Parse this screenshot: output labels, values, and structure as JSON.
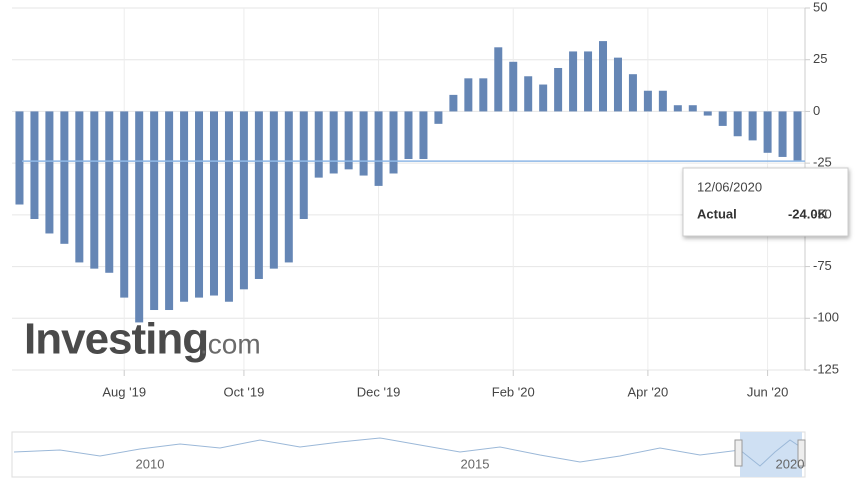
{
  "chart_data": {
    "type": "bar",
    "categories": [
      null,
      null,
      null,
      null,
      null,
      null,
      null,
      "Aug '19",
      null,
      null,
      null,
      null,
      null,
      null,
      null,
      "Oct '19",
      null,
      null,
      null,
      null,
      null,
      null,
      null,
      null,
      "Dec '19",
      null,
      null,
      null,
      null,
      null,
      null,
      null,
      null,
      "Feb '20",
      null,
      null,
      null,
      null,
      null,
      null,
      null,
      null,
      "Apr '20",
      null,
      null,
      null,
      null,
      null,
      null,
      null,
      "Jun '20",
      null,
      null
    ],
    "values": [
      -45,
      -52,
      -59,
      -64,
      -73,
      -76,
      -78,
      -90,
      -102,
      -96,
      -96,
      -92,
      -90,
      -89,
      -92,
      -86,
      -81,
      -76,
      -73,
      -52,
      -32,
      -30,
      -28,
      -31,
      -36,
      -30,
      -23,
      -23,
      -6,
      8,
      16,
      16,
      31,
      24,
      17,
      13,
      21,
      29,
      29,
      34,
      26,
      18,
      10,
      10,
      3,
      3,
      -2,
      -7,
      -12,
      -14,
      -20,
      -22,
      -24
    ],
    "color": "#6586b5",
    "ylim": [
      -125,
      50
    ],
    "yticks": [
      50,
      25,
      0,
      -25,
      -50,
      -75,
      -100,
      -125
    ],
    "grid": true,
    "tooltip": {
      "date": "12/06/2020",
      "label": "Actual",
      "value_label": "-24.0K"
    },
    "watermark": {
      "brand": "Investing",
      "suffix": ".com"
    },
    "navigator": {
      "labels": [
        "2010",
        "2015",
        "2020"
      ]
    }
  }
}
